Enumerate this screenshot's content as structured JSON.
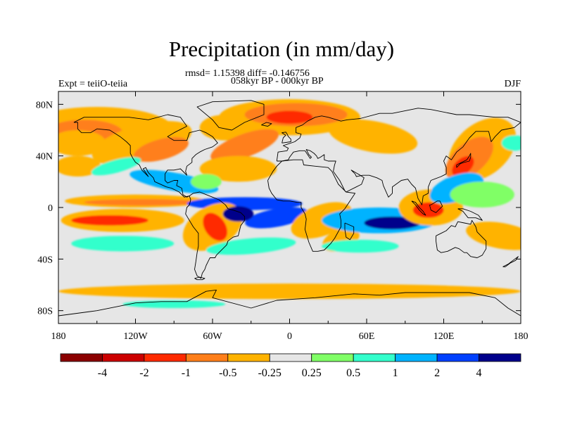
{
  "chart_data": {
    "type": "heatmap",
    "title": "Precipitation (in mm/day)",
    "stats": "rmsd= 1.15398  diff= -0.146756",
    "subtitle": "058kyr BP - 000kyr BP",
    "left_label": "Expt = teiiO-teiia",
    "right_label": "DJF",
    "xlim": [
      -180,
      180
    ],
    "ylim": [
      -90,
      90
    ],
    "x_ticks": [
      {
        "value": -180,
        "label": "180"
      },
      {
        "value": -120,
        "label": "120W"
      },
      {
        "value": -60,
        "label": "60W"
      },
      {
        "value": 0,
        "label": "0"
      },
      {
        "value": 60,
        "label": "60E"
      },
      {
        "value": 120,
        "label": "120E"
      },
      {
        "value": 180,
        "label": "180"
      }
    ],
    "y_ticks": [
      {
        "value": 80,
        "label": "80N"
      },
      {
        "value": 40,
        "label": "40N"
      },
      {
        "value": 0,
        "label": "0"
      },
      {
        "value": -40,
        "label": "40S"
      },
      {
        "value": -80,
        "label": "80S"
      }
    ],
    "colorbar": {
      "colors": [
        "#8b0000",
        "#cc0000",
        "#ff2a00",
        "#ff7f1a",
        "#ffb300",
        "#e6e6e6",
        "#80ff66",
        "#33ffcc",
        "#00b3ff",
        "#0040ff",
        "#00008b"
      ],
      "labels": [
        "-4",
        "-2",
        "-1",
        "-0.5",
        "-0.25",
        "0.25",
        "0.5",
        "1",
        "2",
        "4"
      ]
    },
    "regions": [
      {
        "level": 4,
        "lon": -150,
        "lat": 60,
        "w": 60,
        "h": 18,
        "rot": 0
      },
      {
        "level": 3,
        "lon": -160,
        "lat": 58,
        "w": 30,
        "h": 10,
        "rot": 0
      },
      {
        "level": 4,
        "lon": -115,
        "lat": 50,
        "w": 40,
        "h": 14,
        "rot": -15
      },
      {
        "level": 3,
        "lon": -100,
        "lat": 45,
        "w": 22,
        "h": 8,
        "rot": -15
      },
      {
        "level": 4,
        "lon": -50,
        "lat": 62,
        "w": 20,
        "h": 10,
        "rot": 0
      },
      {
        "level": 4,
        "lon": 0,
        "lat": 70,
        "w": 55,
        "h": 14,
        "rot": 0
      },
      {
        "level": 3,
        "lon": 5,
        "lat": 72,
        "w": 40,
        "h": 9,
        "rot": 0
      },
      {
        "level": 2,
        "lon": 0,
        "lat": 70,
        "w": 18,
        "h": 5,
        "rot": 0
      },
      {
        "level": 3,
        "lon": -35,
        "lat": 48,
        "w": 28,
        "h": 9,
        "rot": -20
      },
      {
        "level": 4,
        "lon": 65,
        "lat": 55,
        "w": 35,
        "h": 12,
        "rot": 10
      },
      {
        "level": 4,
        "lon": 150,
        "lat": 45,
        "w": 30,
        "h": 20,
        "rot": -40
      },
      {
        "level": 3,
        "lon": 140,
        "lat": 38,
        "w": 22,
        "h": 12,
        "rot": -40
      },
      {
        "level": 2,
        "lon": 135,
        "lat": 32,
        "w": 10,
        "h": 6,
        "rot": -40
      },
      {
        "level": 4,
        "lon": -165,
        "lat": 32,
        "w": 18,
        "h": 8,
        "rot": 0
      },
      {
        "level": 4,
        "lon": -40,
        "lat": 30,
        "w": 30,
        "h": 10,
        "rot": 0
      },
      {
        "level": 7,
        "lon": -135,
        "lat": 32,
        "w": 20,
        "h": 5,
        "rot": -15
      },
      {
        "level": 8,
        "lon": -90,
        "lat": 20,
        "w": 35,
        "h": 7,
        "rot": 10
      },
      {
        "level": 6,
        "lon": -65,
        "lat": 20,
        "w": 12,
        "h": 6,
        "rot": 0
      },
      {
        "level": 4,
        "lon": -120,
        "lat": 5,
        "w": 55,
        "h": 5,
        "rot": 0
      },
      {
        "level": 3,
        "lon": -115,
        "lat": 4,
        "w": 45,
        "h": 2.5,
        "rot": 0
      },
      {
        "level": 9,
        "lon": -35,
        "lat": 3,
        "w": 45,
        "h": 5,
        "rot": 0
      },
      {
        "level": 9,
        "lon": -10,
        "lat": -8,
        "w": 25,
        "h": 7,
        "rot": -10
      },
      {
        "level": 7,
        "lon": -130,
        "lat": -28,
        "w": 40,
        "h": 6,
        "rot": 0
      },
      {
        "level": 4,
        "lon": -130,
        "lat": -10,
        "w": 48,
        "h": 9,
        "rot": 0
      },
      {
        "level": 2,
        "lon": -140,
        "lat": -10,
        "w": 30,
        "h": 4,
        "rot": 0
      },
      {
        "level": 4,
        "lon": -60,
        "lat": -15,
        "w": 25,
        "h": 16,
        "rot": -30
      },
      {
        "level": 2,
        "lon": -58,
        "lat": -15,
        "w": 8,
        "h": 12,
        "rot": -35
      },
      {
        "level": 10,
        "lon": -40,
        "lat": -5,
        "w": 12,
        "h": 6,
        "rot": 0
      },
      {
        "level": 7,
        "lon": -30,
        "lat": -30,
        "w": 35,
        "h": 6,
        "rot": -5
      },
      {
        "level": 4,
        "lon": 25,
        "lat": -10,
        "w": 25,
        "h": 12,
        "rot": -20
      },
      {
        "level": 4,
        "lon": 40,
        "lat": -25,
        "w": 15,
        "h": 8,
        "rot": -20
      },
      {
        "level": 8,
        "lon": 70,
        "lat": -10,
        "w": 45,
        "h": 10,
        "rot": 0
      },
      {
        "level": 10,
        "lon": 80,
        "lat": -12,
        "w": 22,
        "h": 5,
        "rot": 0
      },
      {
        "level": 7,
        "lon": 55,
        "lat": -30,
        "w": 30,
        "h": 5,
        "rot": 0
      },
      {
        "level": 4,
        "lon": 110,
        "lat": 0,
        "w": 25,
        "h": 14,
        "rot": 0
      },
      {
        "level": 2,
        "lon": 108,
        "lat": -2,
        "w": 12,
        "h": 6,
        "rot": 0
      },
      {
        "level": 8,
        "lon": 130,
        "lat": 15,
        "w": 22,
        "h": 10,
        "rot": -20
      },
      {
        "level": 6,
        "lon": 150,
        "lat": 10,
        "w": 25,
        "h": 10,
        "rot": 0
      },
      {
        "level": 4,
        "lon": 165,
        "lat": -22,
        "w": 28,
        "h": 10,
        "rot": 10
      },
      {
        "level": 4,
        "lon": -165,
        "lat": 50,
        "w": 22,
        "h": 10,
        "rot": 0
      },
      {
        "level": 7,
        "lon": 175,
        "lat": 50,
        "w": 10,
        "h": 6,
        "rot": 0
      },
      {
        "level": 4,
        "lon": 0,
        "lat": -65,
        "w": 180,
        "h": 6,
        "rot": 0
      },
      {
        "level": 7,
        "lon": -90,
        "lat": -75,
        "w": 40,
        "h": 3,
        "rot": 0
      }
    ],
    "coastlines": [
      "-168,66 -160,70 -140,70 -125,70 -110,68 -95,72 -85,70 -80,63 -90,58 -95,55 -90,52 -80,52 -78,58 -70,60 -65,58 -60,55 -56,50 -60,47 -66,45 -70,43 -73,41 -76,38 -76,35 -80,32 -81,28 -80,25 -82,27 -85,30 -90,29 -95,29 -97,26 -97,21 -95,19 -90,21 -87,21 -88,17 -84,15 -83,10 -80,8 -78,9 -82,8 -86,12 -92,15 -96,16 -105,20 -106,23 -110,27 -112,31 -114,30 -110,24 -112,26 -115,29 -117,33 -120,35 -122,38 -124,42 -124,48 -127,51 -132,55 -140,60 -150,61 -155,58 -162,58 -165,61 -165,66 -168,66",
      "-78,9 -75,11 -70,12 -65,10 -60,8 -55,6 -50,2 -48,-1 -44,-2 -38,-4 -35,-7 -35,-10 -38,-14 -39,-18 -40,-22 -44,-23 -48,-26 -49,-29 -52,-32 -55,-35 -57,-37 -58,-39 -62,-39 -63,-41 -65,-45 -66,-48 -68,-51 -69,-55 -72,-53 -74,-48 -73,-42 -72,-35 -71,-30 -71,-20 -75,-15 -78,-10 -81,-5 -80,0 -78,2 -77,6 -78,9",
      "-17,21 -16,15 -14,11 -10,6 -5,5 0,5 6,4 9,4 9,0 12,-5 13,-9 12,-17 15,-27 18,-34 22,-34 27,-33 32,-28 35,-24 40,-15 40,-10 39,-5 43,-1 51,11 44,12 38,18 33,28 30,31 20,32 11,33 10,37 3,37 -6,36 -10,32 -13,28 -17,21",
      "-10,36 -9,43 -2,44 -1,46 -5,48 -2,49 4,51 8,54 9,57 5,58 5,62 10,64 14,67 20,70 25,71 30,70 40,67 45,68 55,69 70,73 80,73 100,77 110,76 130,72 140,72 160,70 170,70 180,66 175,62 165,60 160,55 157,51 155,59 145,59 140,54 135,47 130,43 126,37 122,40 120,36 122,31 122,26 118,24 110,21 108,16 108,11 104,9 103,2 100,7 98,15 95,18 92,22 87,21 80,16 80,11 77,8 73,17 72,21 68,23 62,25 57,25 52,24 51,26 48,29 55,25 58,23 56,18 52,16 44,12 43,13 39,21 34,28 35,33 36,36 30,36 27,37 27,41 24,39 22,38 21,40 19,42 16,44 13,45 15,41 17,39 16,38 12,44 8,44 3,43 0,39 -1,37 -6,36 -10,36",
      "114,-22 114,-26 115,-33 118,-35 123,-34 129,-31 132,-32 136,-35 138,-35 141,-38 146,-39 150,-37 153,-32 153,-26 146,-19 145,-15 142,-10 141,-13 136,-12 131,-11 129,-15 126,-14 122,-18 118,-20 114,-22",
      "-45,60 -55,62 -60,68 -72,78 -60,82 -30,83 -20,80 -20,72 -25,70 -35,66 -45,60",
      "-6,50 -5,54 -3,56 -6,58 -3,58.5 -2,57 -1,55 1,53 1,51 -6,50",
      "130,31 133,34 136,35 140,36 141,39 141,42 140,40 138,37 134,35 130,33 130,31",
      "95,5 98,4 101,0 104,-3 106,-6 104,-5 101,-2 98,2 95,5",
      "109,2 110,-2 114,-4 117,-1 119,1 117,5 115,5 110,2 109,2",
      "131,-1 135,-3 139,-8 145,-8 150,-10 147,-6 141,-3 135,-1 131,-1",
      "43,-12 50,-15 50,-20 47,-25 44,-23 43,-17 43,-12",
      "-74,-55 -70,-54 -66,-55 -68,-56 -72,-56 -74,-55",
      "-22,64 -18,66 -14,65 -17,63 -22,64",
      "166,-46 170,-44 174,-41 178,-38 176,-41 172,-43 168,-46 166,-46",
      "-180,-84 -150,-80 -120,-74 -100,-73 -80,-73 -65,-65 -57,-64 -60,-70 -30,-78 -10,-72 20,-70 50,-67 70,-68 90,-66 120,-66 140,-66 160,-70 170,-78 180,-84"
    ]
  }
}
